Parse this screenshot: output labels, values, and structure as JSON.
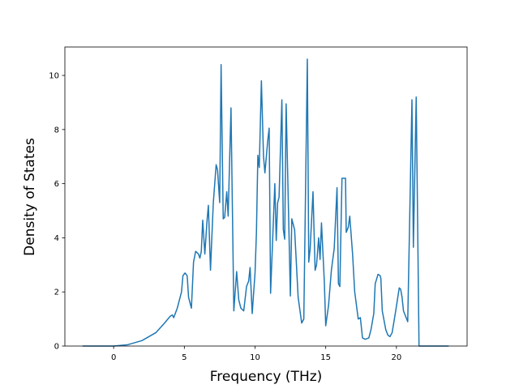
{
  "chart_data": {
    "type": "line",
    "x_label": "Frequency (THz)",
    "y_label": "Density of States",
    "xlim": [
      -3.45,
      25.0
    ],
    "ylim": [
      0,
      11.05
    ],
    "xticks": [
      0,
      5,
      10,
      15,
      20
    ],
    "yticks": [
      0,
      2,
      4,
      6,
      8,
      10
    ],
    "series": [
      {
        "color": "#1f77b4",
        "x": [
          -2.2,
          0,
          1,
          2,
          3,
          3.6,
          4.0,
          4.15,
          4.25,
          4.5,
          4.8,
          4.9,
          5.05,
          5.2,
          5.3,
          5.5,
          5.65,
          5.8,
          6.0,
          6.1,
          6.2,
          6.3,
          6.45,
          6.6,
          6.7,
          6.85,
          7.0,
          7.05,
          7.25,
          7.35,
          7.5,
          7.6,
          7.75,
          7.85,
          8.0,
          8.1,
          8.3,
          8.5,
          8.7,
          8.85,
          9.0,
          9.2,
          9.4,
          9.55,
          9.65,
          9.8,
          10.0,
          10.1,
          10.2,
          10.3,
          10.45,
          10.6,
          10.7,
          10.9,
          11.0,
          11.1,
          11.4,
          11.5,
          11.6,
          11.7,
          11.9,
          12.0,
          12.1,
          12.2,
          12.5,
          12.6,
          12.8,
          13.05,
          13.3,
          13.45,
          13.7,
          13.8,
          13.9,
          14.1,
          14.25,
          14.35,
          14.5,
          14.6,
          14.7,
          14.9,
          15.0,
          15.2,
          15.4,
          15.6,
          15.8,
          15.9,
          16.0,
          16.15,
          16.4,
          16.45,
          16.6,
          16.7,
          16.9,
          17.05,
          17.3,
          17.45,
          17.6,
          17.8,
          18.05,
          18.2,
          18.4,
          18.5,
          18.7,
          18.85,
          18.9,
          19.0,
          19.25,
          19.4,
          19.55,
          19.7,
          19.95,
          20.2,
          20.3,
          20.4,
          20.5,
          20.8,
          21.1,
          21.2,
          21.4,
          21.6,
          23.7
        ],
        "values": [
          0,
          0,
          0.05,
          0.2,
          0.5,
          0.85,
          1.1,
          1.15,
          1.05,
          1.4,
          2.0,
          2.6,
          2.7,
          2.6,
          1.8,
          1.4,
          3.1,
          3.5,
          3.4,
          3.25,
          3.5,
          4.65,
          3.4,
          4.6,
          5.2,
          2.8,
          4.7,
          5.3,
          6.7,
          6.5,
          5.3,
          10.4,
          4.7,
          4.75,
          5.7,
          4.8,
          8.8,
          1.3,
          2.75,
          1.7,
          1.4,
          1.3,
          2.2,
          2.4,
          2.9,
          1.2,
          2.7,
          4.2,
          7.05,
          6.6,
          9.8,
          7.0,
          6.4,
          7.6,
          8.05,
          1.95,
          6.0,
          3.9,
          5.3,
          5.5,
          9.1,
          4.3,
          3.95,
          8.95,
          1.85,
          4.7,
          4.3,
          1.8,
          0.85,
          1.0,
          10.6,
          3.1,
          3.6,
          5.7,
          2.8,
          3.0,
          4.0,
          3.2,
          4.55,
          2.4,
          0.75,
          1.5,
          2.8,
          3.6,
          5.85,
          2.3,
          2.2,
          6.2,
          6.2,
          4.2,
          4.4,
          4.8,
          3.4,
          2.0,
          1.0,
          1.05,
          0.3,
          0.25,
          0.3,
          0.6,
          1.2,
          2.3,
          2.65,
          2.6,
          2.5,
          1.3,
          0.6,
          0.4,
          0.35,
          0.5,
          1.3,
          2.15,
          2.1,
          1.8,
          1.3,
          0.9,
          9.1,
          3.65,
          9.2,
          0,
          0
        ]
      }
    ]
  }
}
